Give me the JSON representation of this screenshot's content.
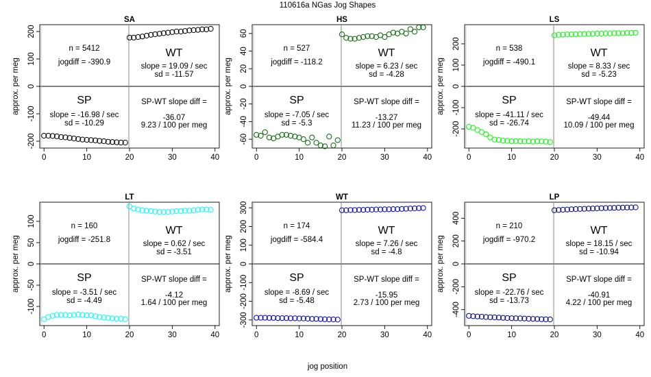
{
  "figure_title": "110616a    NGas Jog Shapes",
  "x_axis_label": "jog position",
  "y_axis_label": "approx. per meg",
  "chart_data": [
    {
      "type": "scatter",
      "title": "SA",
      "color": "#000000",
      "xlim": [
        -1,
        41
      ],
      "ylim": [
        -225,
        225
      ],
      "xticks": [
        0,
        10,
        20,
        30,
        40
      ],
      "yticks": [
        -200,
        -100,
        0,
        100,
        200
      ],
      "n_text": "n = 5412",
      "jogdiff_text": "jogdiff = -390.9",
      "wt_text": "WT",
      "wt_slope_text": "slope = 19.09 / sec",
      "wt_sd_text": "sd = -11.57",
      "sp_text": "SP",
      "sp_slope_text": "slope = -16.98 / sec",
      "sp_sd_text": "sd = -10.29",
      "diff_label_text": "SP-WT slope diff =",
      "diff_value_text": "-36.07",
      "diff_per_text": "9.23 / 100 per meg",
      "sp_x": [
        0,
        1,
        2,
        3,
        4,
        5,
        6,
        7,
        8,
        9,
        10,
        11,
        12,
        13,
        14,
        15,
        16,
        17,
        18,
        19
      ],
      "sp_y": [
        -180,
        -180,
        -181,
        -182,
        -185,
        -186,
        -188,
        -190,
        -192,
        -194,
        -195,
        -196,
        -197,
        -199,
        -200,
        -202,
        -203,
        -204,
        -205,
        -205
      ],
      "wt_x": [
        20,
        21,
        22,
        23,
        24,
        25,
        26,
        27,
        28,
        29,
        30,
        31,
        32,
        33,
        34,
        35,
        36,
        37,
        38,
        39
      ],
      "wt_y": [
        178,
        178,
        180,
        182,
        185,
        188,
        190,
        192,
        194,
        196,
        198,
        200,
        200,
        202,
        204,
        205,
        206,
        208,
        208,
        210
      ]
    },
    {
      "type": "scatter",
      "title": "HS",
      "color": "#006400",
      "xlim": [
        -1,
        41
      ],
      "ylim": [
        -70,
        70
      ],
      "xticks": [
        0,
        10,
        20,
        30,
        40
      ],
      "yticks": [
        -60,
        -40,
        -20,
        0,
        20,
        40,
        60
      ],
      "n_text": "n = 527",
      "jogdiff_text": "jogdiff = -118.2",
      "wt_text": "WT",
      "wt_slope_text": "slope = 6.23 / sec",
      "wt_sd_text": "sd = -4.28",
      "sp_text": "SP",
      "sp_slope_text": "slope = -7.05 / sec",
      "sp_sd_text": "sd = -5.3",
      "diff_label_text": "SP-WT slope diff =",
      "diff_value_text": "-13.27",
      "diff_per_text": "11.23 / 100 per meg",
      "sp_x": [
        0,
        1,
        2,
        3,
        4,
        5,
        6,
        7,
        8,
        9,
        10,
        11,
        12,
        13,
        14,
        15,
        16,
        17,
        18,
        19
      ],
      "sp_y": [
        -55,
        -56,
        -52,
        -58,
        -59,
        -57,
        -55,
        -55,
        -56,
        -57,
        -58,
        -60,
        -64,
        -58,
        -64,
        -67,
        -68,
        -57,
        -67,
        -61
      ],
      "wt_x": [
        20,
        21,
        22,
        23,
        24,
        25,
        26,
        27,
        28,
        29,
        30,
        31,
        32,
        33,
        34,
        35,
        36,
        37,
        38,
        39
      ],
      "wt_y": [
        59,
        55,
        54,
        54,
        55,
        56,
        57,
        57,
        56,
        58,
        56,
        59,
        61,
        60,
        62,
        60,
        65,
        62,
        67,
        67
      ]
    },
    {
      "type": "scatter",
      "title": "LS",
      "color": "#00ff00",
      "xlim": [
        -1,
        41
      ],
      "ylim": [
        -290,
        290
      ],
      "xticks": [
        0,
        10,
        20,
        30,
        40
      ],
      "yticks": [
        -200,
        -100,
        0,
        100,
        200
      ],
      "n_text": "n = 538",
      "jogdiff_text": "jogdiff = -490.1",
      "wt_text": "WT",
      "wt_slope_text": "slope = 8.33 / sec",
      "wt_sd_text": "sd = -5.23",
      "sp_text": "SP",
      "sp_slope_text": "slope = -41.11 / sec",
      "sp_sd_text": "sd = -26.74",
      "diff_label_text": "SP-WT slope diff =",
      "diff_value_text": "-49.44",
      "diff_per_text": "10.09 / 100 per meg",
      "sp_x": [
        0,
        1,
        2,
        3,
        4,
        5,
        6,
        7,
        8,
        9,
        10,
        11,
        12,
        13,
        14,
        15,
        16,
        17,
        18,
        19
      ],
      "sp_y": [
        -190,
        -195,
        -205,
        -215,
        -225,
        -240,
        -250,
        -252,
        -255,
        -256,
        -258,
        -257,
        -258,
        -259,
        -258,
        -260,
        -258,
        -259,
        -260,
        -262
      ],
      "wt_x": [
        20,
        21,
        22,
        23,
        24,
        25,
        26,
        27,
        28,
        29,
        30,
        31,
        32,
        33,
        34,
        35,
        36,
        37,
        38,
        39
      ],
      "wt_y": [
        240,
        242,
        243,
        244,
        244,
        245,
        246,
        246,
        247,
        247,
        248,
        248,
        249,
        249,
        250,
        250,
        250,
        251,
        251,
        252
      ]
    },
    {
      "type": "scatter",
      "title": "LT",
      "color": "#00ffff",
      "xlim": [
        -1,
        41
      ],
      "ylim": [
        -145,
        145
      ],
      "xticks": [
        0,
        10,
        20,
        30,
        40
      ],
      "yticks": [
        -100,
        -50,
        0,
        50,
        100
      ],
      "n_text": "n = 160",
      "jogdiff_text": "jogdiff = -251.8",
      "wt_text": "WT",
      "wt_slope_text": "slope = 0.62 / sec",
      "wt_sd_text": "sd = -3.51",
      "sp_text": "SP",
      "sp_slope_text": "slope = -3.51 / sec",
      "sp_sd_text": "sd = -4.49",
      "diff_label_text": "SP-WT slope diff =",
      "diff_value_text": "-4.12",
      "diff_per_text": "1.64 / 100 per meg",
      "sp_x": [
        0,
        1,
        2,
        3,
        4,
        5,
        6,
        7,
        8,
        9,
        10,
        11,
        12,
        13,
        14,
        15,
        16,
        17,
        18,
        19
      ],
      "sp_y": [
        -130,
        -125,
        -122,
        -120,
        -120,
        -120,
        -121,
        -120,
        -119,
        -120,
        -121,
        -121,
        -123,
        -125,
        -126,
        -127,
        -128,
        -129,
        -129,
        -130
      ],
      "wt_x": [
        20,
        21,
        22,
        23,
        24,
        25,
        26,
        27,
        28,
        29,
        30,
        31,
        32,
        33,
        34,
        35,
        36,
        37,
        38,
        39
      ],
      "wt_y": [
        135,
        130,
        128,
        126,
        125,
        124,
        123,
        122,
        122,
        122,
        123,
        124,
        124,
        125,
        125,
        126,
        127,
        128,
        128,
        127
      ]
    },
    {
      "type": "scatter",
      "title": "WT",
      "color": "#0000cd",
      "xlim": [
        -1,
        41
      ],
      "ylim": [
        -330,
        330
      ],
      "xticks": [
        0,
        10,
        20,
        30,
        40
      ],
      "yticks": [
        -300,
        -200,
        -100,
        0,
        100,
        200,
        300
      ],
      "n_text": "n = 174",
      "jogdiff_text": "jogdiff = -584.4",
      "wt_text": "WT",
      "wt_slope_text": "slope = 7.26 / sec",
      "wt_sd_text": "sd = -4.8",
      "sp_text": "SP",
      "sp_slope_text": "slope = -8.69 / sec",
      "sp_sd_text": "sd = -5.48",
      "diff_label_text": "SP-WT slope diff =",
      "diff_value_text": "-15.95",
      "diff_per_text": "2.73 / 100 per meg",
      "sp_x": [
        0,
        1,
        2,
        3,
        4,
        5,
        6,
        7,
        8,
        9,
        10,
        11,
        12,
        13,
        14,
        15,
        16,
        17,
        18,
        19
      ],
      "sp_y": [
        -288,
        -288,
        -288,
        -289,
        -289,
        -290,
        -290,
        -290,
        -291,
        -291,
        -292,
        -292,
        -293,
        -294,
        -294,
        -295,
        -296,
        -297,
        -297,
        -298
      ],
      "wt_x": [
        20,
        21,
        22,
        23,
        24,
        25,
        26,
        27,
        28,
        29,
        30,
        31,
        32,
        33,
        34,
        35,
        36,
        37,
        38,
        39
      ],
      "wt_y": [
        287,
        287,
        288,
        288,
        289,
        289,
        290,
        290,
        291,
        291,
        292,
        292,
        293,
        293,
        294,
        295,
        296,
        297,
        298,
        299
      ]
    },
    {
      "type": "scatter",
      "title": "LP",
      "color": "#00008b",
      "xlim": [
        -1,
        41
      ],
      "ylim": [
        -540,
        540
      ],
      "xticks": [
        0,
        10,
        20,
        30,
        40
      ],
      "yticks": [
        -400,
        -200,
        0,
        200,
        400
      ],
      "n_text": "n = 210",
      "jogdiff_text": "jogdiff = -970.2",
      "wt_text": "WT",
      "wt_slope_text": "slope = 18.15 / sec",
      "wt_sd_text": "sd = -10.94",
      "sp_text": "SP",
      "sp_slope_text": "slope = -22.76 / sec",
      "sp_sd_text": "sd = -13.73",
      "diff_label_text": "SP-WT slope diff =",
      "diff_value_text": "-40.91",
      "diff_per_text": "4.22 / 100 per meg",
      "sp_x": [
        0,
        1,
        2,
        3,
        4,
        5,
        6,
        7,
        8,
        9,
        10,
        11,
        12,
        13,
        14,
        15,
        16,
        17,
        18,
        19
      ],
      "sp_y": [
        -455,
        -458,
        -460,
        -462,
        -465,
        -467,
        -468,
        -470,
        -472,
        -474,
        -475,
        -476,
        -477,
        -478,
        -480,
        -481,
        -482,
        -484,
        -485,
        -486
      ],
      "wt_x": [
        20,
        21,
        22,
        23,
        24,
        25,
        26,
        27,
        28,
        29,
        30,
        31,
        32,
        33,
        34,
        35,
        36,
        37,
        38,
        39
      ],
      "wt_y": [
        470,
        472,
        474,
        476,
        478,
        480,
        481,
        482,
        484,
        485,
        486,
        488,
        489,
        490,
        491,
        492,
        493,
        494,
        494,
        495
      ]
    }
  ]
}
